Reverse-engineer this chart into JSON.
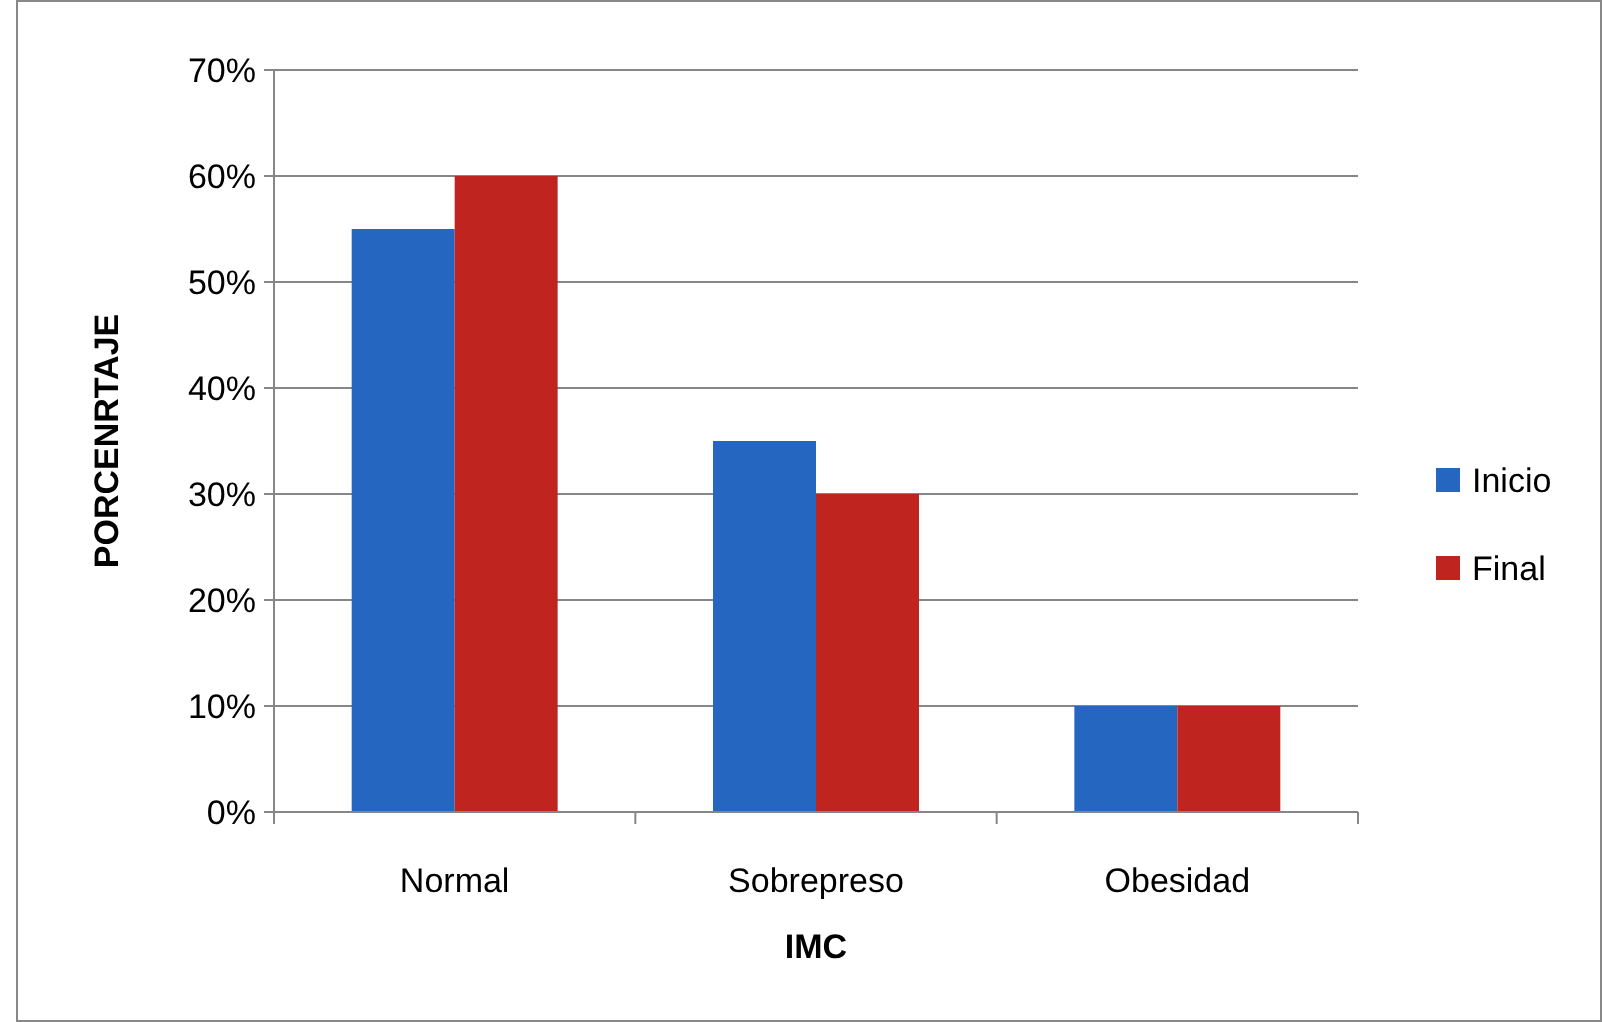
{
  "chart_data": {
    "type": "bar",
    "xlabel": "IMC",
    "ylabel": "PORCENRTAJE",
    "categories": [
      "Normal",
      "Sobrepreso",
      "Obesidad"
    ],
    "series": [
      {
        "name": "Inicio",
        "color": "#2566c1",
        "values": [
          55,
          35,
          10
        ]
      },
      {
        "name": "Final",
        "color": "#c0241f",
        "values": [
          60,
          30,
          10
        ]
      }
    ],
    "ylim": [
      0,
      70
    ],
    "yticks": [
      {
        "value": 0,
        "label": "0%"
      },
      {
        "value": 10,
        "label": "10%"
      },
      {
        "value": 20,
        "label": "20%"
      },
      {
        "value": 30,
        "label": "30%"
      },
      {
        "value": 40,
        "label": "40%"
      },
      {
        "value": 50,
        "label": "50%"
      },
      {
        "value": 60,
        "label": "60%"
      },
      {
        "value": 70,
        "label": "70%"
      }
    ],
    "grid": "y",
    "legend": "right"
  }
}
